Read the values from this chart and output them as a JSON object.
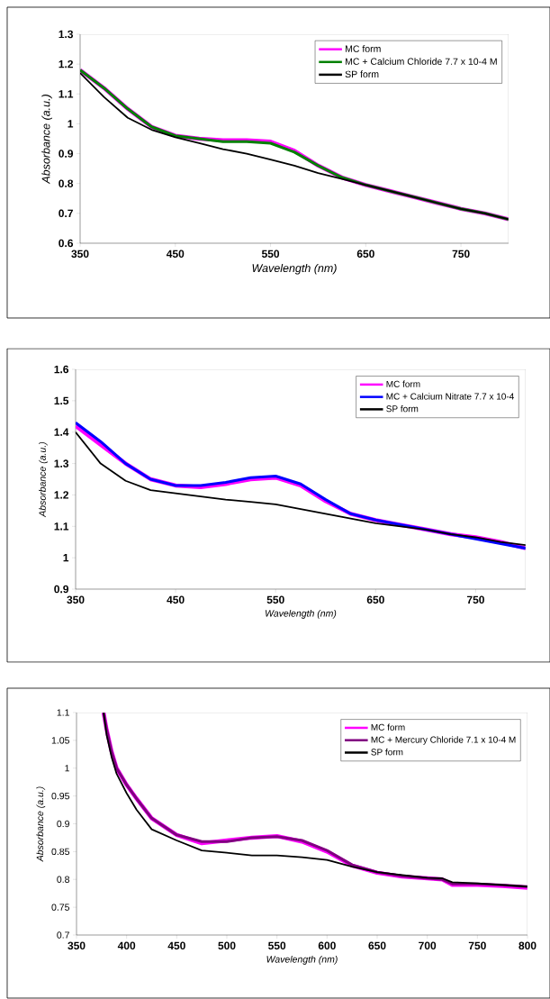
{
  "chart_data": [
    {
      "type": "line",
      "xlabel": "Wavelength (nm)",
      "ylabel": "Absorbance (a.u.)",
      "xlim": [
        350,
        800
      ],
      "xticks": [
        350,
        450,
        550,
        650,
        750
      ],
      "ylim": [
        0.6,
        1.3
      ],
      "yticks": [
        0.6,
        0.7,
        0.8,
        0.9,
        1,
        1.1,
        1.2,
        1.3
      ],
      "grid": false,
      "legend": "top right",
      "marker": "none",
      "line_style": "solid",
      "x": [
        350,
        375,
        400,
        425,
        450,
        475,
        500,
        525,
        550,
        575,
        600,
        625,
        650,
        675,
        700,
        725,
        750,
        775,
        800
      ],
      "series": [
        {
          "name": "MC form",
          "color": "#ff00ff",
          "values": [
            1.18,
            1.12,
            1.05,
            0.99,
            0.96,
            0.95,
            0.945,
            0.945,
            0.94,
            0.91,
            0.86,
            0.82,
            0.795,
            0.775,
            0.755,
            0.735,
            0.715,
            0.7,
            0.68
          ]
        },
        {
          "name": "MC + Calcium Chloride 7.7 x 10-4 M",
          "color": "#008000",
          "values": [
            1.18,
            1.12,
            1.05,
            0.99,
            0.96,
            0.95,
            0.94,
            0.94,
            0.935,
            0.905,
            0.86,
            0.82,
            0.795,
            0.775,
            0.755,
            0.735,
            0.715,
            0.7,
            0.68
          ]
        },
        {
          "name": "SP form",
          "color": "#000000",
          "values": [
            1.17,
            1.09,
            1.02,
            0.98,
            0.955,
            0.935,
            0.915,
            0.9,
            0.88,
            0.86,
            0.835,
            0.815,
            0.795,
            0.775,
            0.755,
            0.735,
            0.715,
            0.7,
            0.68
          ]
        }
      ]
    },
    {
      "type": "line",
      "xlabel": "Wavelength (nm)",
      "ylabel": "Absorbance (a.u.)",
      "xlim": [
        350,
        800
      ],
      "xticks": [
        350,
        450,
        550,
        650,
        750
      ],
      "ylim": [
        0.9,
        1.6
      ],
      "yticks": [
        0.9,
        1,
        1.1,
        1.2,
        1.3,
        1.4,
        1.5,
        1.6
      ],
      "grid": false,
      "legend": "top right",
      "marker": "none",
      "line_style": "solid",
      "x": [
        350,
        375,
        400,
        425,
        450,
        475,
        500,
        525,
        550,
        575,
        600,
        625,
        650,
        675,
        700,
        725,
        750,
        775,
        800
      ],
      "series": [
        {
          "name": "MC form",
          "color": "#ff00ff",
          "values": [
            1.42,
            1.36,
            1.3,
            1.25,
            1.23,
            1.225,
            1.235,
            1.25,
            1.255,
            1.23,
            1.18,
            1.14,
            1.12,
            1.105,
            1.09,
            1.075,
            1.065,
            1.05,
            1.03
          ]
        },
        {
          "name": "MC + Calcium Nitrate 7.7 x 10-4",
          "color": "#0000ff",
          "values": [
            1.43,
            1.37,
            1.3,
            1.25,
            1.23,
            1.23,
            1.24,
            1.255,
            1.26,
            1.235,
            1.185,
            1.14,
            1.12,
            1.105,
            1.09,
            1.075,
            1.06,
            1.045,
            1.03
          ]
        },
        {
          "name": "SP form",
          "color": "#000000",
          "values": [
            1.4,
            1.3,
            1.245,
            1.215,
            1.205,
            1.195,
            1.185,
            1.178,
            1.17,
            1.155,
            1.14,
            1.125,
            1.11,
            1.1,
            1.09,
            1.075,
            1.065,
            1.05,
            1.04
          ]
        }
      ]
    },
    {
      "type": "line",
      "xlabel": "Wavelength (nm)",
      "ylabel": "Absorbance (a.u.)",
      "xlim": [
        350,
        800
      ],
      "xticks": [
        350,
        400,
        450,
        500,
        550,
        600,
        650,
        700,
        750,
        800
      ],
      "ylim": [
        0.7,
        1.1
      ],
      "yticks": [
        0.7,
        0.75,
        0.8,
        0.85,
        0.9,
        0.95,
        1,
        1.05,
        1.1
      ],
      "grid": false,
      "legend": "top right",
      "marker": "none",
      "line_style": "solid",
      "x": [
        377,
        380,
        385,
        390,
        400,
        410,
        425,
        450,
        475,
        500,
        525,
        550,
        575,
        600,
        625,
        650,
        675,
        700,
        715,
        725,
        750,
        775,
        800
      ],
      "series": [
        {
          "name": "MC form",
          "color": "#ff00ff",
          "values": [
            1.1,
            1.07,
            1.03,
            1.0,
            0.97,
            0.945,
            0.91,
            0.88,
            0.865,
            0.87,
            0.875,
            0.878,
            0.868,
            0.85,
            0.825,
            0.812,
            0.805,
            0.802,
            0.8,
            0.79,
            0.79,
            0.788,
            0.785
          ]
        },
        {
          "name": "MC + Mercury Chloride 7.1 x 10-4 M",
          "color": "#800080",
          "values": [
            1.1,
            1.07,
            1.03,
            1.0,
            0.97,
            0.945,
            0.91,
            0.88,
            0.868,
            0.868,
            0.875,
            0.877,
            0.87,
            0.852,
            0.826,
            0.813,
            0.806,
            0.802,
            0.8,
            0.792,
            0.792,
            0.79,
            0.787
          ]
        },
        {
          "name": "SP form",
          "color": "#000000",
          "values": [
            1.1,
            1.06,
            1.02,
            0.99,
            0.955,
            0.925,
            0.89,
            0.87,
            0.852,
            0.848,
            0.843,
            0.843,
            0.84,
            0.835,
            0.823,
            0.813,
            0.808,
            0.803,
            0.802,
            0.795,
            0.793,
            0.79,
            0.787
          ]
        }
      ]
    }
  ]
}
